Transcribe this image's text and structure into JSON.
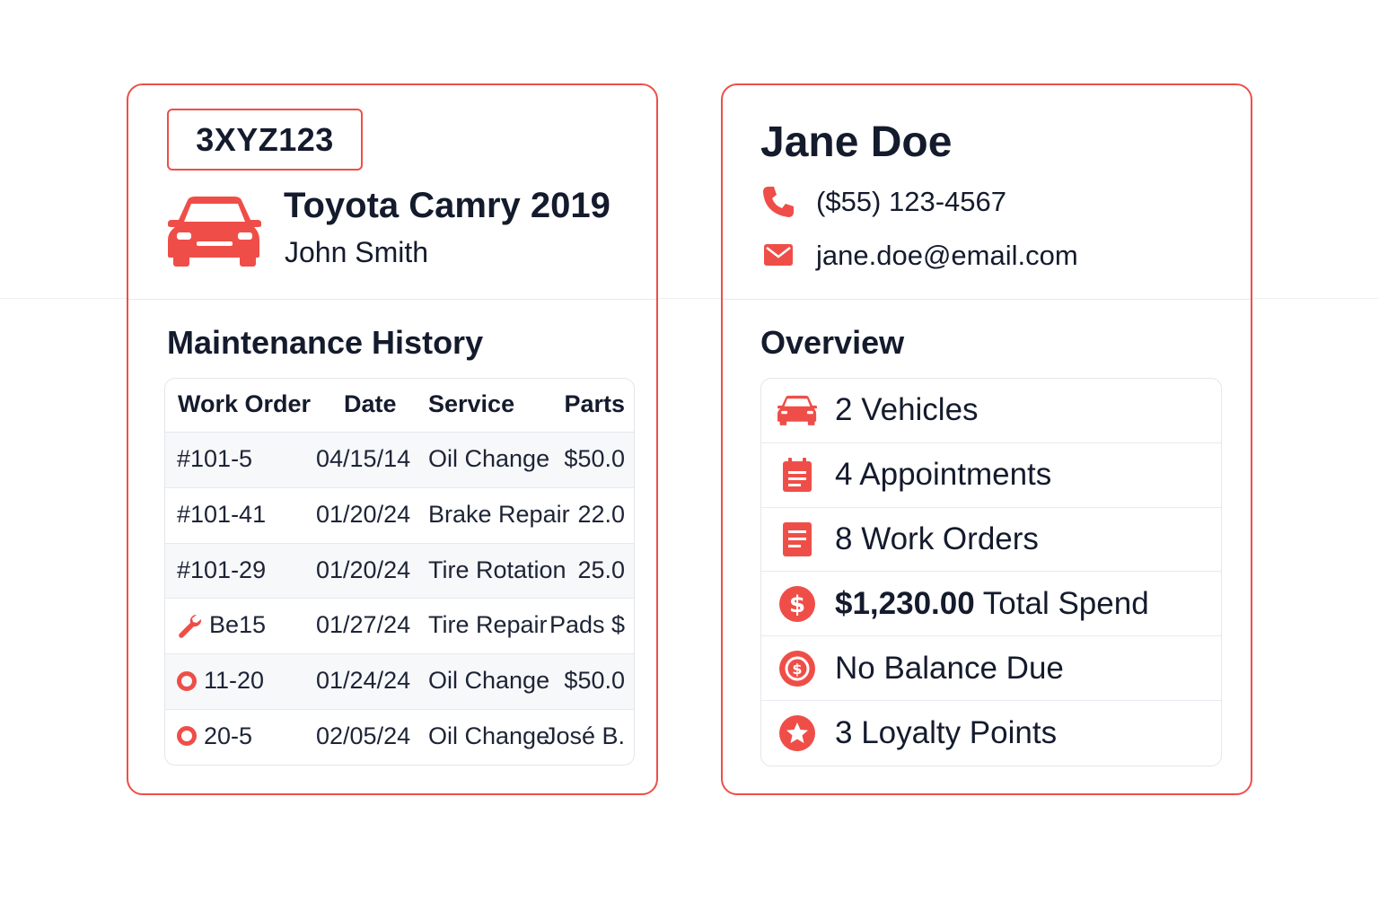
{
  "colors": {
    "accent": "#ef4e48",
    "text": "#141b2d",
    "border": "#e3e6eb"
  },
  "vehicle": {
    "plate": "3XYZ123",
    "title": "Toyota Camry 2019",
    "owner": "John Smith",
    "icon": "car-icon"
  },
  "maintenance": {
    "title": "Maintenance History",
    "columns": [
      "Work Order",
      "Date",
      "Service",
      "Parts"
    ],
    "rows": [
      {
        "work_order": "#101-5",
        "date": "04/15/14",
        "service": "Oil Change",
        "parts": "$50.0",
        "icon": ""
      },
      {
        "work_order": "#101-41",
        "date": "01/20/24",
        "service": "Brake Repair",
        "parts": "22.0",
        "icon": ""
      },
      {
        "work_order": "#101-29",
        "date": "01/20/24",
        "service": "Tire Rotation",
        "parts": "25.0",
        "icon": ""
      },
      {
        "work_order": "Be15",
        "date": "01/27/24",
        "service": "Tire Repair",
        "parts": "Pads $",
        "icon": "wrench-icon"
      },
      {
        "work_order": "11-20",
        "date": "01/24/24",
        "service": "Oil Change",
        "parts": "$50.0",
        "icon": "ring-icon"
      },
      {
        "work_order": "20-5",
        "date": "02/05/24",
        "service": "Oil Change",
        "parts": "José B.",
        "icon": "ring-icon"
      }
    ]
  },
  "customer": {
    "name": "Jane Doe",
    "phone": "($55) 123-4567",
    "email": "jane.doe@email.com"
  },
  "overview": {
    "title": "Overview",
    "items": [
      {
        "icon": "car-icon",
        "bold": "",
        "text": "2 Vehicles"
      },
      {
        "icon": "calendar-icon",
        "bold": "",
        "text": "4 Appointments"
      },
      {
        "icon": "document-icon",
        "bold": "",
        "text": "8 Work Orders"
      },
      {
        "icon": "dollar-icon",
        "bold": "$1,230.00",
        "text": " Total Spend"
      },
      {
        "icon": "balance-icon",
        "bold": "",
        "text": "No Balance Due"
      },
      {
        "icon": "star-icon",
        "bold": "",
        "text": "3 Loyalty Points"
      }
    ]
  }
}
